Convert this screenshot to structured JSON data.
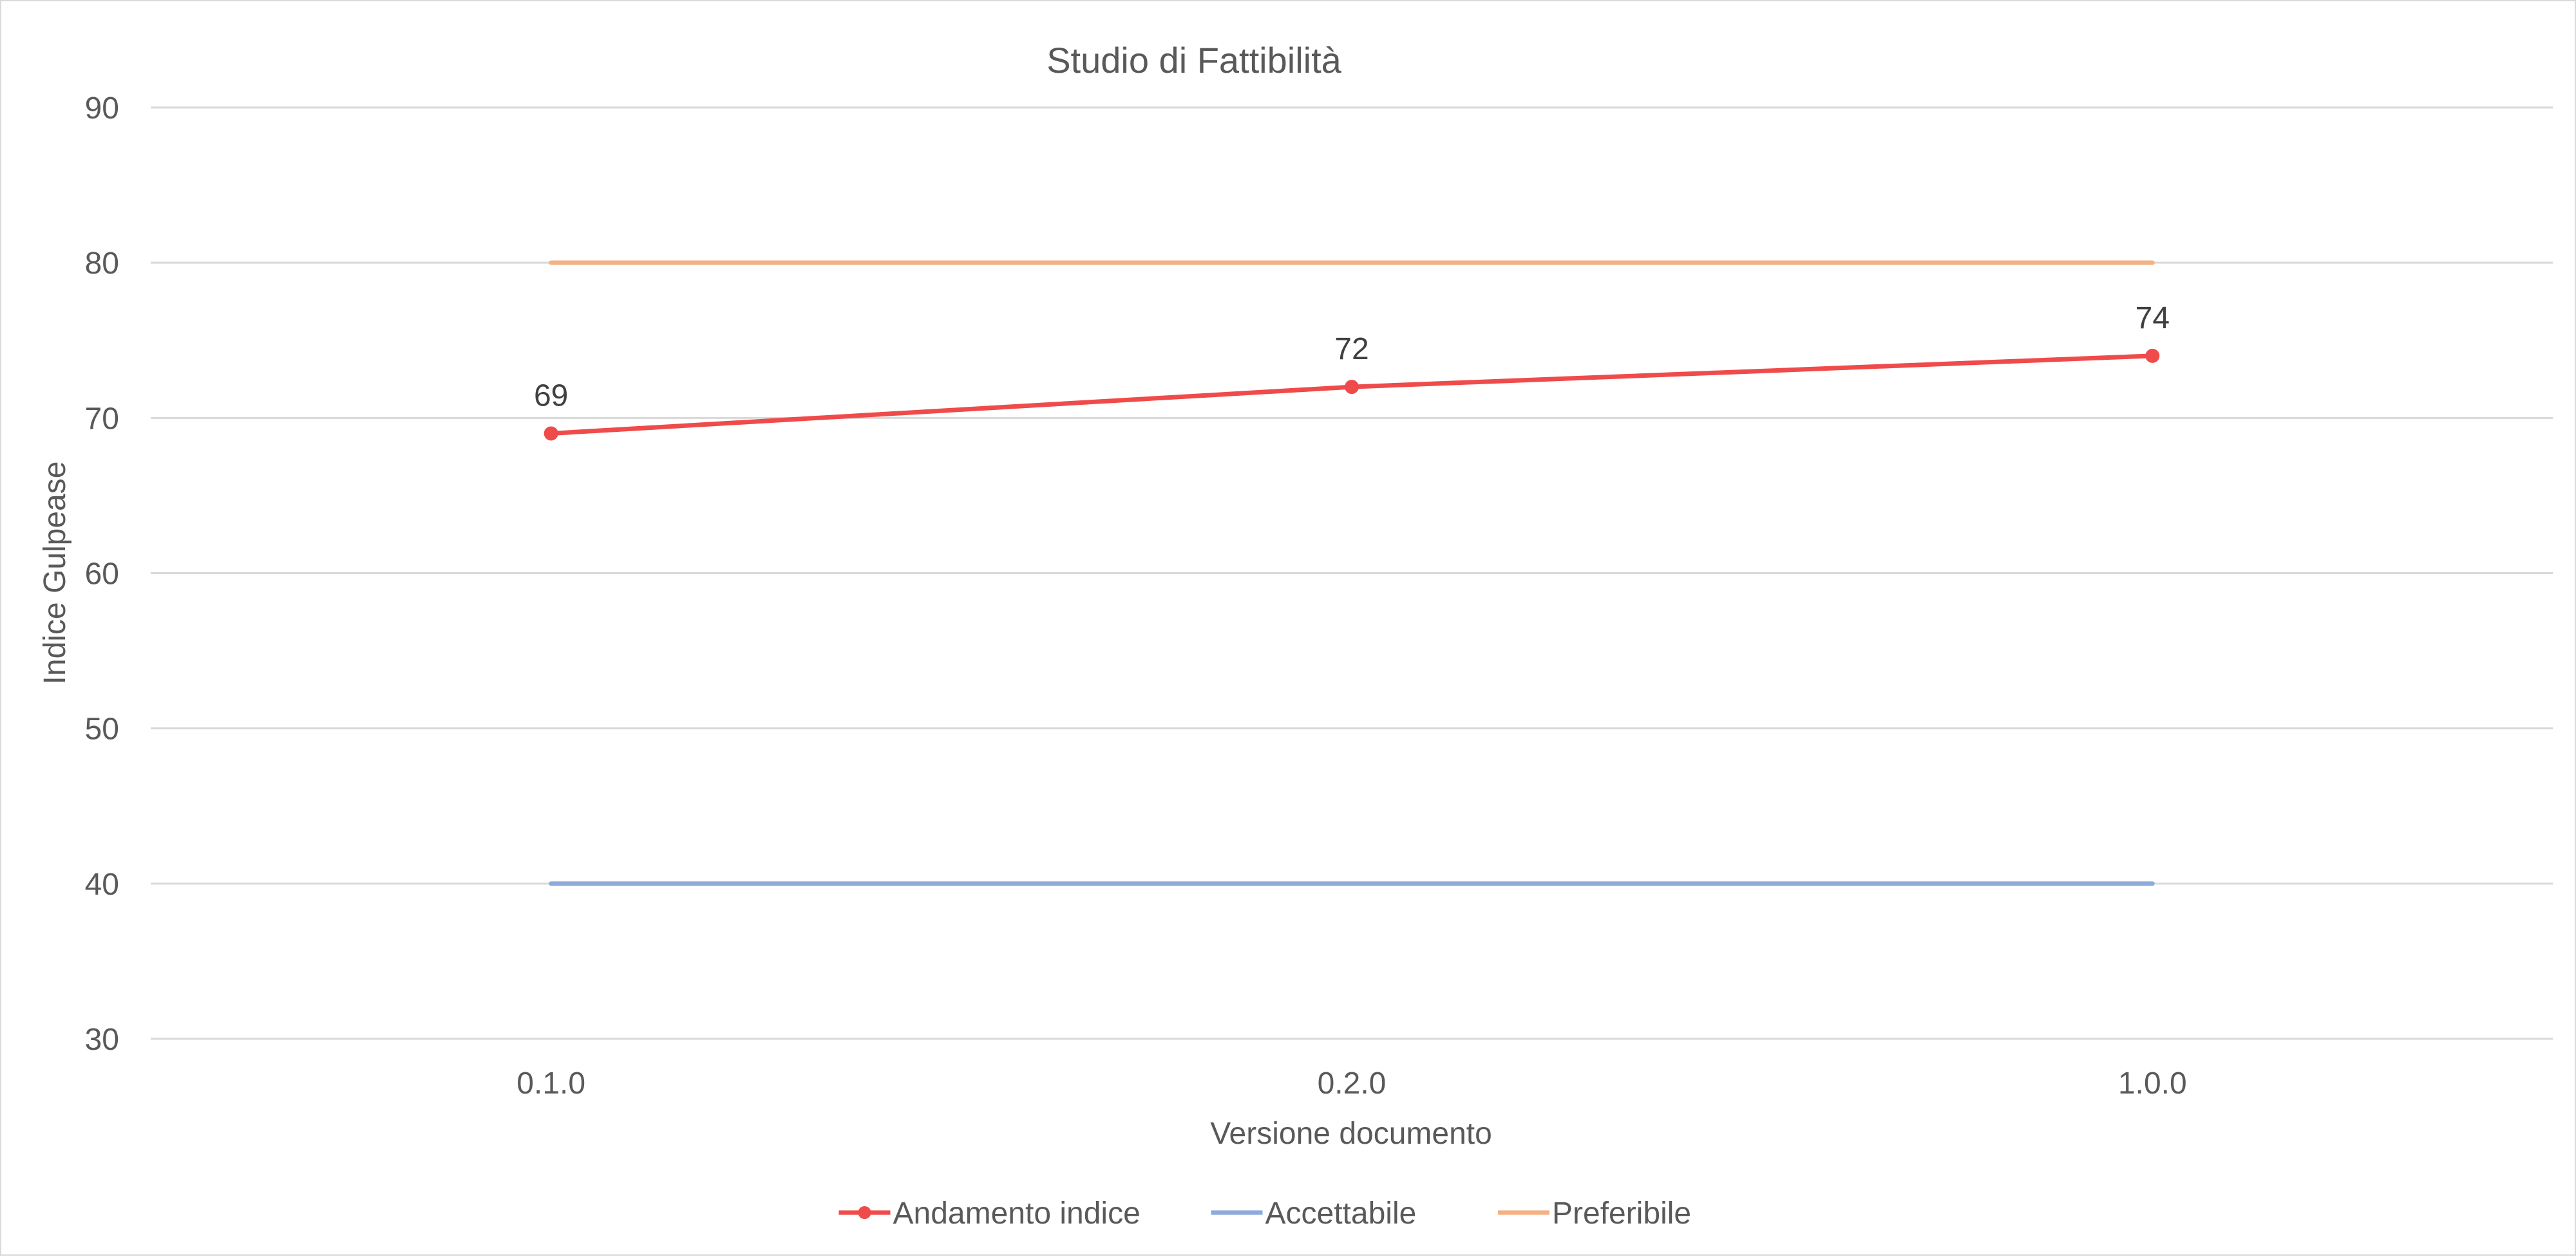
{
  "chart_data": {
    "type": "line",
    "title": "Studio di Fattibilità",
    "xlabel": "Versione documento",
    "ylabel": "Indice Gulpease",
    "categories": [
      "0.1.0",
      "0.2.0",
      "1.0.0"
    ],
    "ylim": [
      30,
      90
    ],
    "yticks": [
      30,
      40,
      50,
      60,
      70,
      80,
      90
    ],
    "grid": true,
    "legend_position": "bottom",
    "series": [
      {
        "name": "Andamento indice",
        "values": [
          69,
          72,
          74
        ],
        "color": "#ef4b4b",
        "markers": true,
        "data_labels": true
      },
      {
        "name": "Accettabile",
        "values": [
          40,
          40,
          40
        ],
        "color": "#8eaadb",
        "markers": false,
        "data_labels": false
      },
      {
        "name": "Preferibile",
        "values": [
          80,
          80,
          80
        ],
        "color": "#f4b183",
        "markers": false,
        "data_labels": false
      }
    ]
  }
}
